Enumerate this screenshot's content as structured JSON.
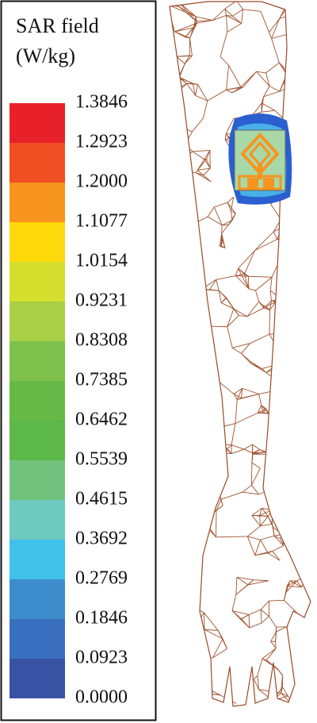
{
  "legend": {
    "title_lines": [
      "SAR field",
      "(W/kg)"
    ],
    "labels": [
      "1.3846",
      "1.2923",
      "1.2000",
      "1.1077",
      "1.0154",
      "0.9231",
      "0.8308",
      "0.7385",
      "0.6462",
      "0.5539",
      "0.4615",
      "0.3692",
      "0.2769",
      "0.1846",
      "0.0923",
      "0.0000"
    ],
    "colors": [
      "#e8202a",
      "#f04e23",
      "#f7941d",
      "#fdd90b",
      "#d4df2e",
      "#a8cf45",
      "#7dc04b",
      "#66b946",
      "#5cb848",
      "#72c27e",
      "#6dcabf",
      "#3fc1ea",
      "#3d8ccb",
      "#3a6fbf",
      "#3953a4"
    ]
  }
}
